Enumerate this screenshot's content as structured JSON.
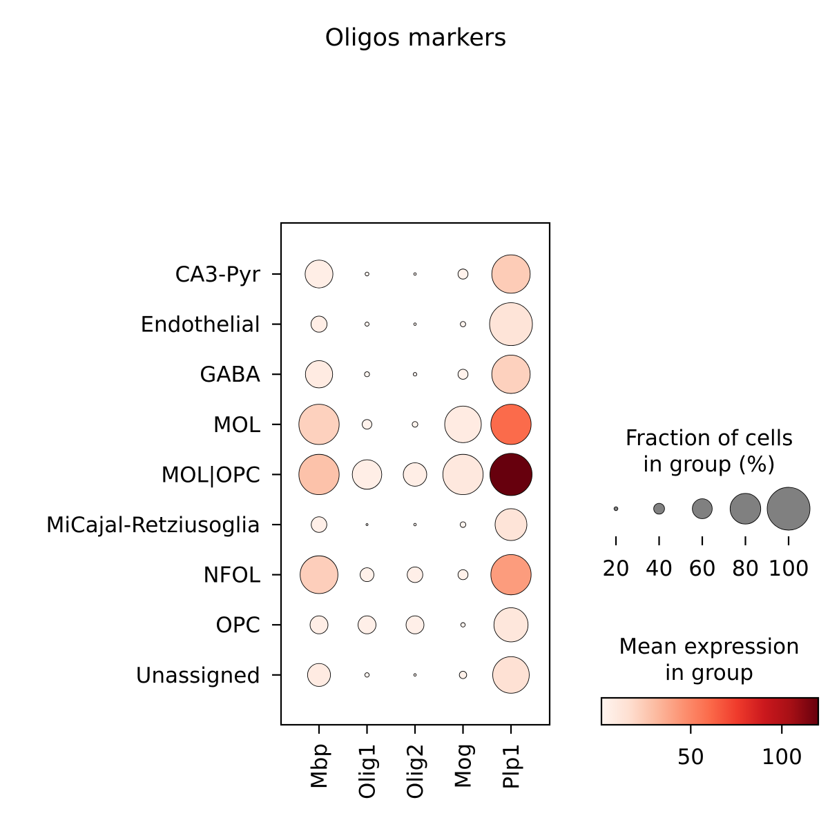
{
  "chart_data": {
    "type": "dotplot",
    "title": "Oligos markers",
    "genes": [
      "Mbp",
      "Olig1",
      "Olig2",
      "Mog",
      "Plp1"
    ],
    "groups": [
      "CA3-Pyr",
      "Endothelial",
      "GABA",
      "MOL",
      "MOL|OPC",
      "MiCajal-Retziusoglia",
      "NFOL",
      "OPC",
      "Unassigned"
    ],
    "fraction_pct": [
      [
        75,
        20,
        15,
        38,
        93
      ],
      [
        52,
        21,
        15,
        25,
        100
      ],
      [
        74,
        24,
        19,
        38,
        93
      ],
      [
        96,
        37,
        26,
        90,
        96
      ],
      [
        96,
        78,
        67,
        96,
        99
      ],
      [
        51,
        13,
        15,
        26,
        82
      ],
      [
        92,
        47,
        51,
        38,
        96
      ],
      [
        56,
        56,
        56,
        22,
        86
      ],
      [
        66,
        22,
        15,
        31,
        90
      ]
    ],
    "mean_expression": [
      [
        6,
        1,
        1,
        3,
        24
      ],
      [
        6,
        1,
        1,
        2,
        13
      ],
      [
        8,
        1,
        1,
        3,
        22
      ],
      [
        22,
        3,
        2,
        8,
        60
      ],
      [
        28,
        6,
        6,
        10,
        120
      ],
      [
        5,
        1,
        1,
        2,
        13
      ],
      [
        23,
        4,
        5,
        4,
        42
      ],
      [
        6,
        5,
        5,
        2,
        11
      ],
      [
        8,
        1,
        1,
        4,
        15
      ]
    ],
    "size_legend": {
      "title_lines": [
        "Fraction of cells",
        "in group (%)"
      ],
      "values": [
        20,
        40,
        60,
        80,
        100
      ],
      "tick_labels": [
        "20",
        "40",
        "60",
        "80",
        "100"
      ],
      "color": "#808080"
    },
    "color_legend": {
      "title_lines": [
        "Mean expression",
        "in group"
      ],
      "range": [
        1,
        120
      ],
      "tick_values": [
        50,
        100
      ],
      "tick_labels": [
        "50",
        "100"
      ],
      "colormap": "Reds",
      "colors": [
        "#fff5f0",
        "#fee0d2",
        "#fcbba1",
        "#fc9272",
        "#fb6a4a",
        "#ef3b2c",
        "#cb181d",
        "#a50f15",
        "#67000d"
      ]
    }
  }
}
